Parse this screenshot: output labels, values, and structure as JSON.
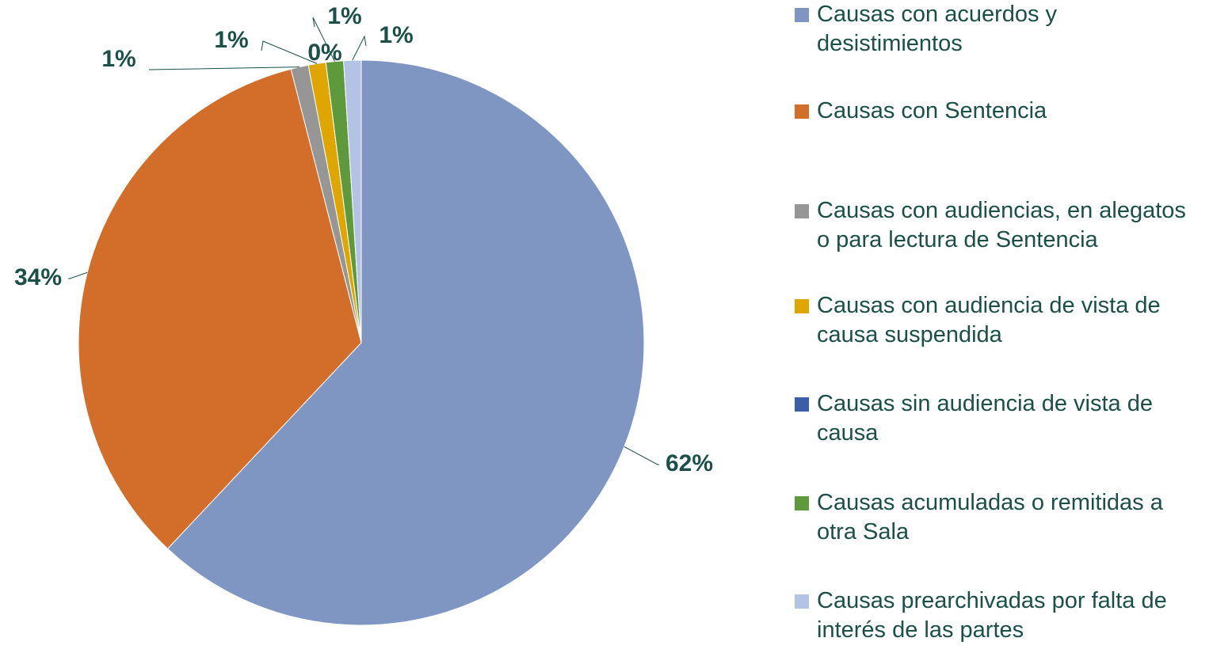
{
  "chart_data": {
    "type": "pie",
    "categories": [
      "Causas con acuerdos y desistimientos",
      "Causas con Sentencia",
      "Causas con audiencias, en alegatos o para lectura de Sentencia",
      "Causas con audiencia de vista de causa suspendida",
      "Causas sin audiencia de vista de causa",
      "Causas acumuladas o remitidas a otra Sala",
      "Causas prearchivadas por falta de interés de las partes"
    ],
    "values": [
      62,
      34,
      1,
      1,
      0,
      1,
      1
    ],
    "value_labels": [
      "62%",
      "34%",
      "1%",
      "1%",
      "0%",
      "1%",
      "1%"
    ],
    "colors": [
      "#7f96c2",
      "#d36d2a",
      "#969696",
      "#e0a600",
      "#3a5ea8",
      "#5e9a3c",
      "#b3c3e6"
    ],
    "legend": "right"
  }
}
